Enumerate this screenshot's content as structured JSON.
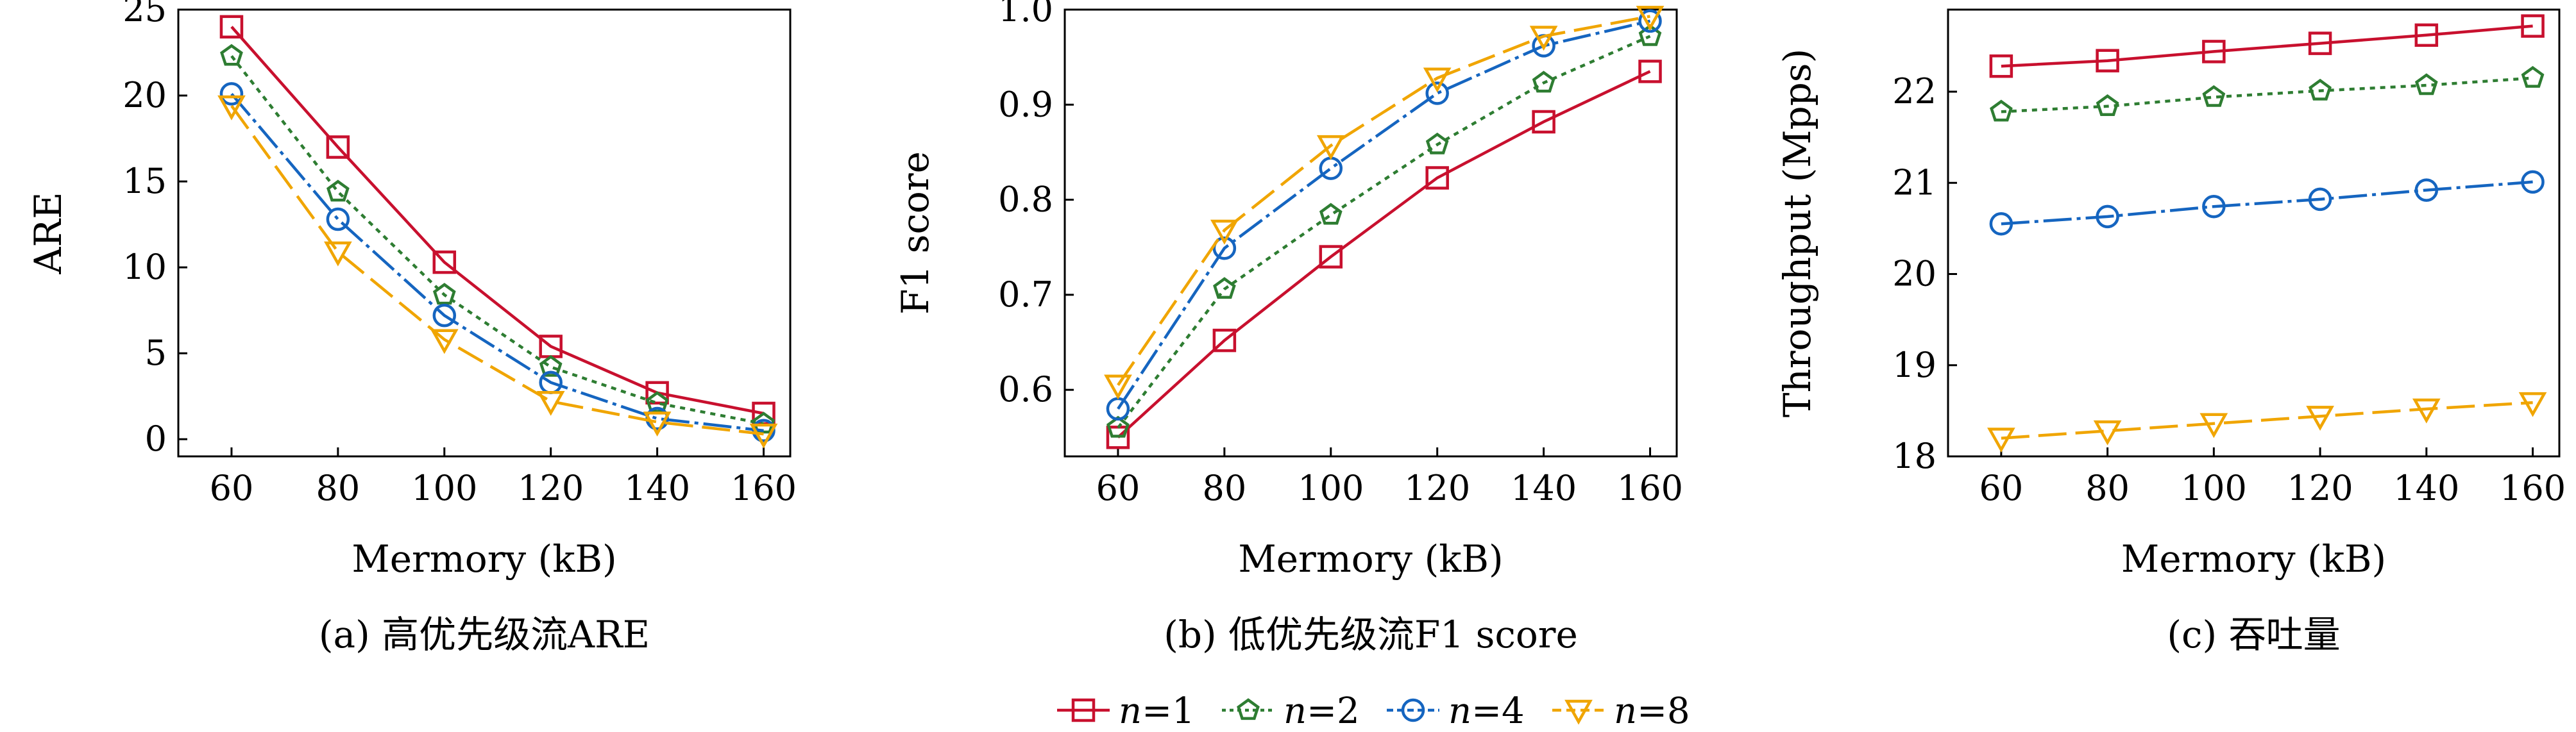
{
  "chart_data": [
    {
      "type": "line",
      "title": "(a) 高优先级流ARE",
      "xlabel": "Mermory (kB)",
      "ylabel": "ARE",
      "x": [
        60,
        80,
        100,
        120,
        140,
        160
      ],
      "xticks": [
        "60",
        "80",
        "100",
        "120",
        "140",
        "160"
      ],
      "xlim": [
        50,
        165
      ],
      "ylim": [
        -1,
        25
      ],
      "yticks": [
        0,
        5,
        10,
        15,
        20,
        25
      ],
      "series": [
        {
          "name": "n=1",
          "values": [
            24.0,
            17.0,
            10.3,
            5.4,
            2.7,
            1.5
          ]
        },
        {
          "name": "n=2",
          "values": [
            22.3,
            14.4,
            8.4,
            4.2,
            2.1,
            0.9
          ]
        },
        {
          "name": "n=4",
          "values": [
            20.1,
            12.8,
            7.2,
            3.3,
            1.2,
            0.5
          ]
        },
        {
          "name": "n=8",
          "values": [
            19.4,
            10.9,
            5.8,
            2.2,
            1.0,
            0.3
          ]
        }
      ]
    },
    {
      "type": "line",
      "title": "(b) 低优先级流F1 score",
      "xlabel": "Mermory (kB)",
      "ylabel": "F1 score",
      "x": [
        60,
        80,
        100,
        120,
        140,
        160
      ],
      "xticks": [
        "60",
        "80",
        "100",
        "120",
        "140",
        "160"
      ],
      "xlim": [
        50,
        165
      ],
      "ylim": [
        0.53,
        1.0
      ],
      "yticks": [
        0.6,
        0.7,
        0.8,
        0.9,
        1.0
      ],
      "series": [
        {
          "name": "n=1",
          "values": [
            0.55,
            0.652,
            0.74,
            0.823,
            0.882,
            0.935
          ]
        },
        {
          "name": "n=2",
          "values": [
            0.56,
            0.706,
            0.784,
            0.858,
            0.923,
            0.972
          ]
        },
        {
          "name": "n=4",
          "values": [
            0.58,
            0.749,
            0.833,
            0.912,
            0.962,
            0.988
          ]
        },
        {
          "name": "n=8",
          "values": [
            0.605,
            0.768,
            0.857,
            0.928,
            0.972,
            0.993
          ]
        }
      ]
    },
    {
      "type": "line",
      "title": "(c) 吞吐量",
      "xlabel": "Mermory (kB)",
      "ylabel": "Throughput (Mpps)",
      "x": [
        60,
        80,
        100,
        120,
        140,
        160
      ],
      "xticks": [
        "60",
        "80",
        "100",
        "120",
        "140",
        "160"
      ],
      "xlim": [
        50,
        165
      ],
      "ylim": [
        18.0,
        22.9
      ],
      "yticks": [
        18,
        19,
        20,
        21,
        22
      ],
      "series": [
        {
          "name": "n=1",
          "values": [
            22.28,
            22.34,
            22.44,
            22.53,
            22.62,
            22.72
          ]
        },
        {
          "name": "n=2",
          "values": [
            21.78,
            21.84,
            21.94,
            22.01,
            22.07,
            22.15
          ]
        },
        {
          "name": "n=4",
          "values": [
            20.55,
            20.63,
            20.74,
            20.82,
            20.92,
            21.01
          ]
        },
        {
          "name": "n=8",
          "values": [
            18.2,
            18.28,
            18.36,
            18.44,
            18.52,
            18.59
          ]
        }
      ]
    }
  ],
  "legend": {
    "position": "bottom-center",
    "items": [
      {
        "var": "n",
        "eq": "=1"
      },
      {
        "var": "n",
        "eq": "=2"
      },
      {
        "var": "n",
        "eq": "=4"
      },
      {
        "var": "n",
        "eq": "=8"
      }
    ]
  },
  "series_styles": [
    {
      "color": "#c8102e",
      "marker": "square",
      "dash": "none"
    },
    {
      "color": "#2e7d32",
      "marker": "pentagon",
      "dash": "8 8"
    },
    {
      "color": "#1565c0",
      "marker": "circle",
      "dash": "44 8 6 8"
    },
    {
      "color": "#f0a500",
      "marker": "triangle-down",
      "dash": "44 14"
    }
  ]
}
